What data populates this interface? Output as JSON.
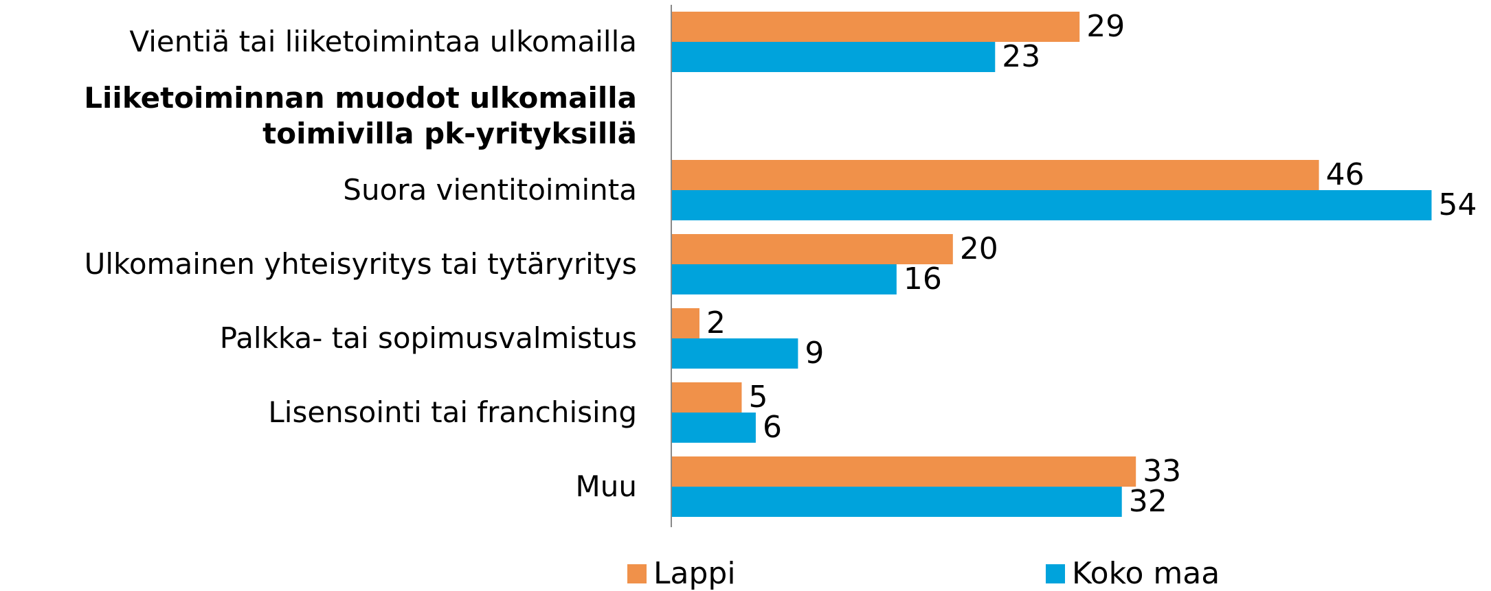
{
  "chart_data": {
    "type": "bar",
    "orientation": "horizontal",
    "categories": [
      "Vientiä tai liiketoimintaa ulkomailla",
      "Liiketoiminnan muodot ulkomailla toimivilla pk-yrityksillä",
      "Suora vientitoiminta",
      "Ulkomainen yhteisyritys tai tytäryritys",
      "Palkka- tai sopimusvalmistus",
      "Lisensointi tai franchising",
      "Muu"
    ],
    "series": [
      {
        "name": "Lappi",
        "color": "#f0914a",
        "values": [
          29,
          null,
          46,
          20,
          2,
          5,
          33
        ]
      },
      {
        "name": "Koko maa",
        "color": "#00a3dc",
        "values": [
          23,
          null,
          54,
          16,
          9,
          6,
          32
        ]
      }
    ],
    "xlim": [
      0,
      55
    ],
    "legend": "bottom"
  }
}
